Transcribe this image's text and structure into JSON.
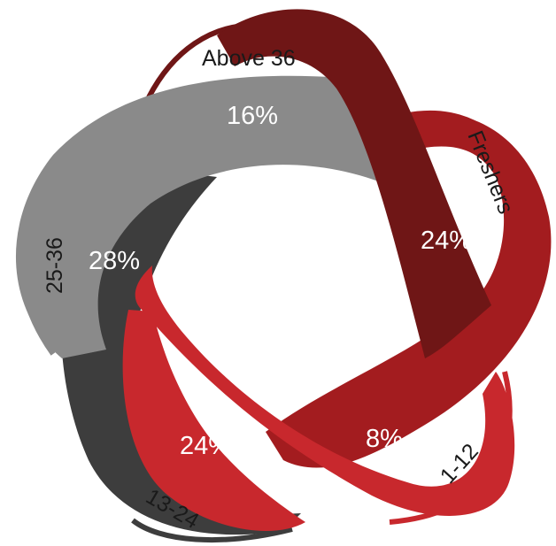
{
  "colors": {
    "above36": "#6f1616",
    "freshers": "#a31c1f",
    "one_to_twelve": "#c8282d",
    "thirteen_to_24": "#3d3d3d",
    "twentyfive_to_36": "#8a8a8a",
    "outline": "#ffffff",
    "label_text": "#1a1a1a",
    "pct_text": "#ffffff"
  },
  "segments": [
    {
      "id": "above36",
      "label": "Above 36",
      "percent": "16%"
    },
    {
      "id": "freshers",
      "label": "Freshers",
      "percent": "24%"
    },
    {
      "id": "one_to_twelve",
      "label": "1-12",
      "percent": "8%"
    },
    {
      "id": "thirteen_to_24",
      "label": "13-24",
      "percent": "24%"
    },
    {
      "id": "twentyfive_to_36",
      "label": "25-36",
      "percent": "28%"
    }
  ]
}
